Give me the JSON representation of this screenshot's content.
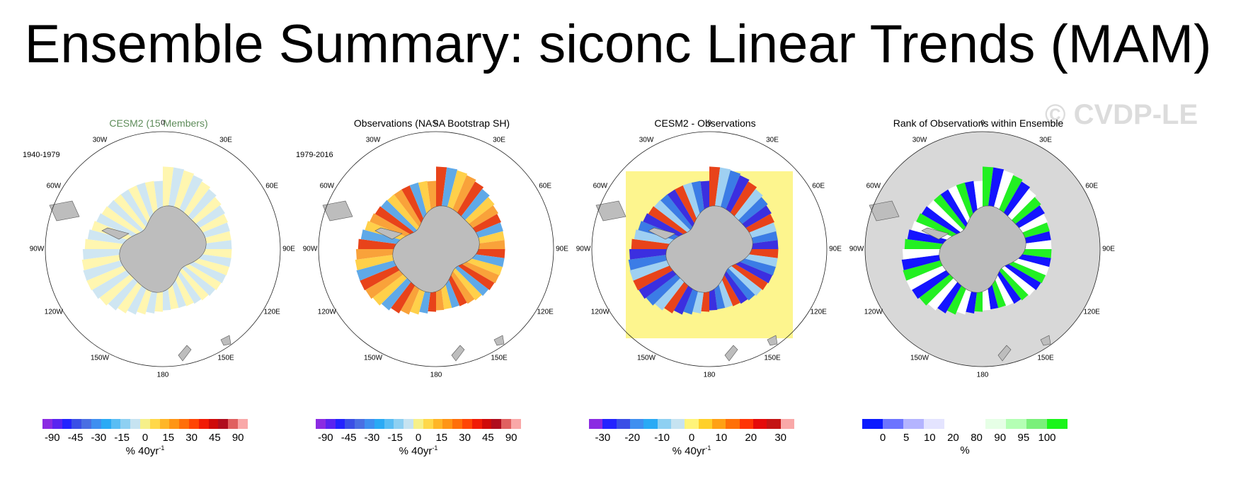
{
  "title": "Ensemble Summary: siconc Linear Trends (MAM)",
  "watermark": "© CVDP-LE",
  "panels": [
    {
      "title": "CESM2 (15 Members)",
      "title_color": "#5e8c5a",
      "period": "1940-1979"
    },
    {
      "title": "Observations (NASA Bootstrap SH)",
      "title_color": "#000000",
      "period": "1979-2016"
    },
    {
      "title": "CESM2 - Observations",
      "title_color": "#000000",
      "period": ""
    },
    {
      "title": "Rank of Observations within Ensemble",
      "title_color": "#000000",
      "period": ""
    }
  ],
  "lon_labels": [
    "0",
    "30E",
    "60E",
    "90E",
    "120E",
    "150E",
    "180",
    "150W",
    "120W",
    "90W",
    "60W",
    "30W"
  ],
  "colorbars": [
    {
      "colors": [
        "#8b2be2",
        "#5a24f0",
        "#2323ff",
        "#3a4fe6",
        "#4a6fe3",
        "#3f8ff0",
        "#2aaaf5",
        "#59bdf4",
        "#8ed0f2",
        "#c6e3f1",
        "#f6f08a",
        "#ffd84a",
        "#ffb627",
        "#ff9515",
        "#ff6f0a",
        "#ff4505",
        "#f11b06",
        "#cf0a0a",
        "#b00d1e",
        "#e06060",
        "#f9a8a8"
      ],
      "ticks": [
        "-90",
        "-45",
        "-30",
        "-15",
        "0",
        "15",
        "30",
        "45",
        "90"
      ],
      "unit": "% 40yr",
      "unit_sup": "-1"
    },
    {
      "colors": [
        "#8b2be2",
        "#5a24f0",
        "#2323ff",
        "#3a4fe6",
        "#4a6fe3",
        "#3f8ff0",
        "#2aaaf5",
        "#59bdf4",
        "#8ed0f2",
        "#c6e3f1",
        "#f6f08a",
        "#ffd84a",
        "#ffb627",
        "#ff9515",
        "#ff6f0a",
        "#ff4505",
        "#f11b06",
        "#cf0a0a",
        "#b00d1e",
        "#e06060",
        "#f9a8a8"
      ],
      "ticks": [
        "-90",
        "-45",
        "-30",
        "-15",
        "0",
        "15",
        "30",
        "45",
        "90"
      ],
      "unit": "% 40yr",
      "unit_sup": "-1"
    },
    {
      "colors": [
        "#8b2be2",
        "#2323ff",
        "#3a4fe6",
        "#3f8ff0",
        "#2aaaf5",
        "#8ed0f2",
        "#c6e3f1",
        "#fff47a",
        "#ffd02a",
        "#ffa115",
        "#ff7008",
        "#ff3505",
        "#e50a0a",
        "#c41414",
        "#f9a8a8"
      ],
      "ticks": [
        "-30",
        "-20",
        "-10",
        "0",
        "10",
        "20",
        "30"
      ],
      "unit": "% 40yr",
      "unit_sup": "-1"
    },
    {
      "colors": [
        "#0a1aff",
        "#6c74ff",
        "#b4b4ff",
        "#e4e4ff",
        "#ffffff",
        "#ffffff",
        "#e6ffe6",
        "#b4ffb4",
        "#7af07a",
        "#1af51a"
      ],
      "ticks": [
        "0",
        "5",
        "10",
        "20",
        "80",
        "90",
        "95",
        "100"
      ],
      "unit": "%",
      "unit_sup": ""
    }
  ],
  "legend_types": [
    "diverging",
    "diverging",
    "diverging",
    "rank"
  ]
}
